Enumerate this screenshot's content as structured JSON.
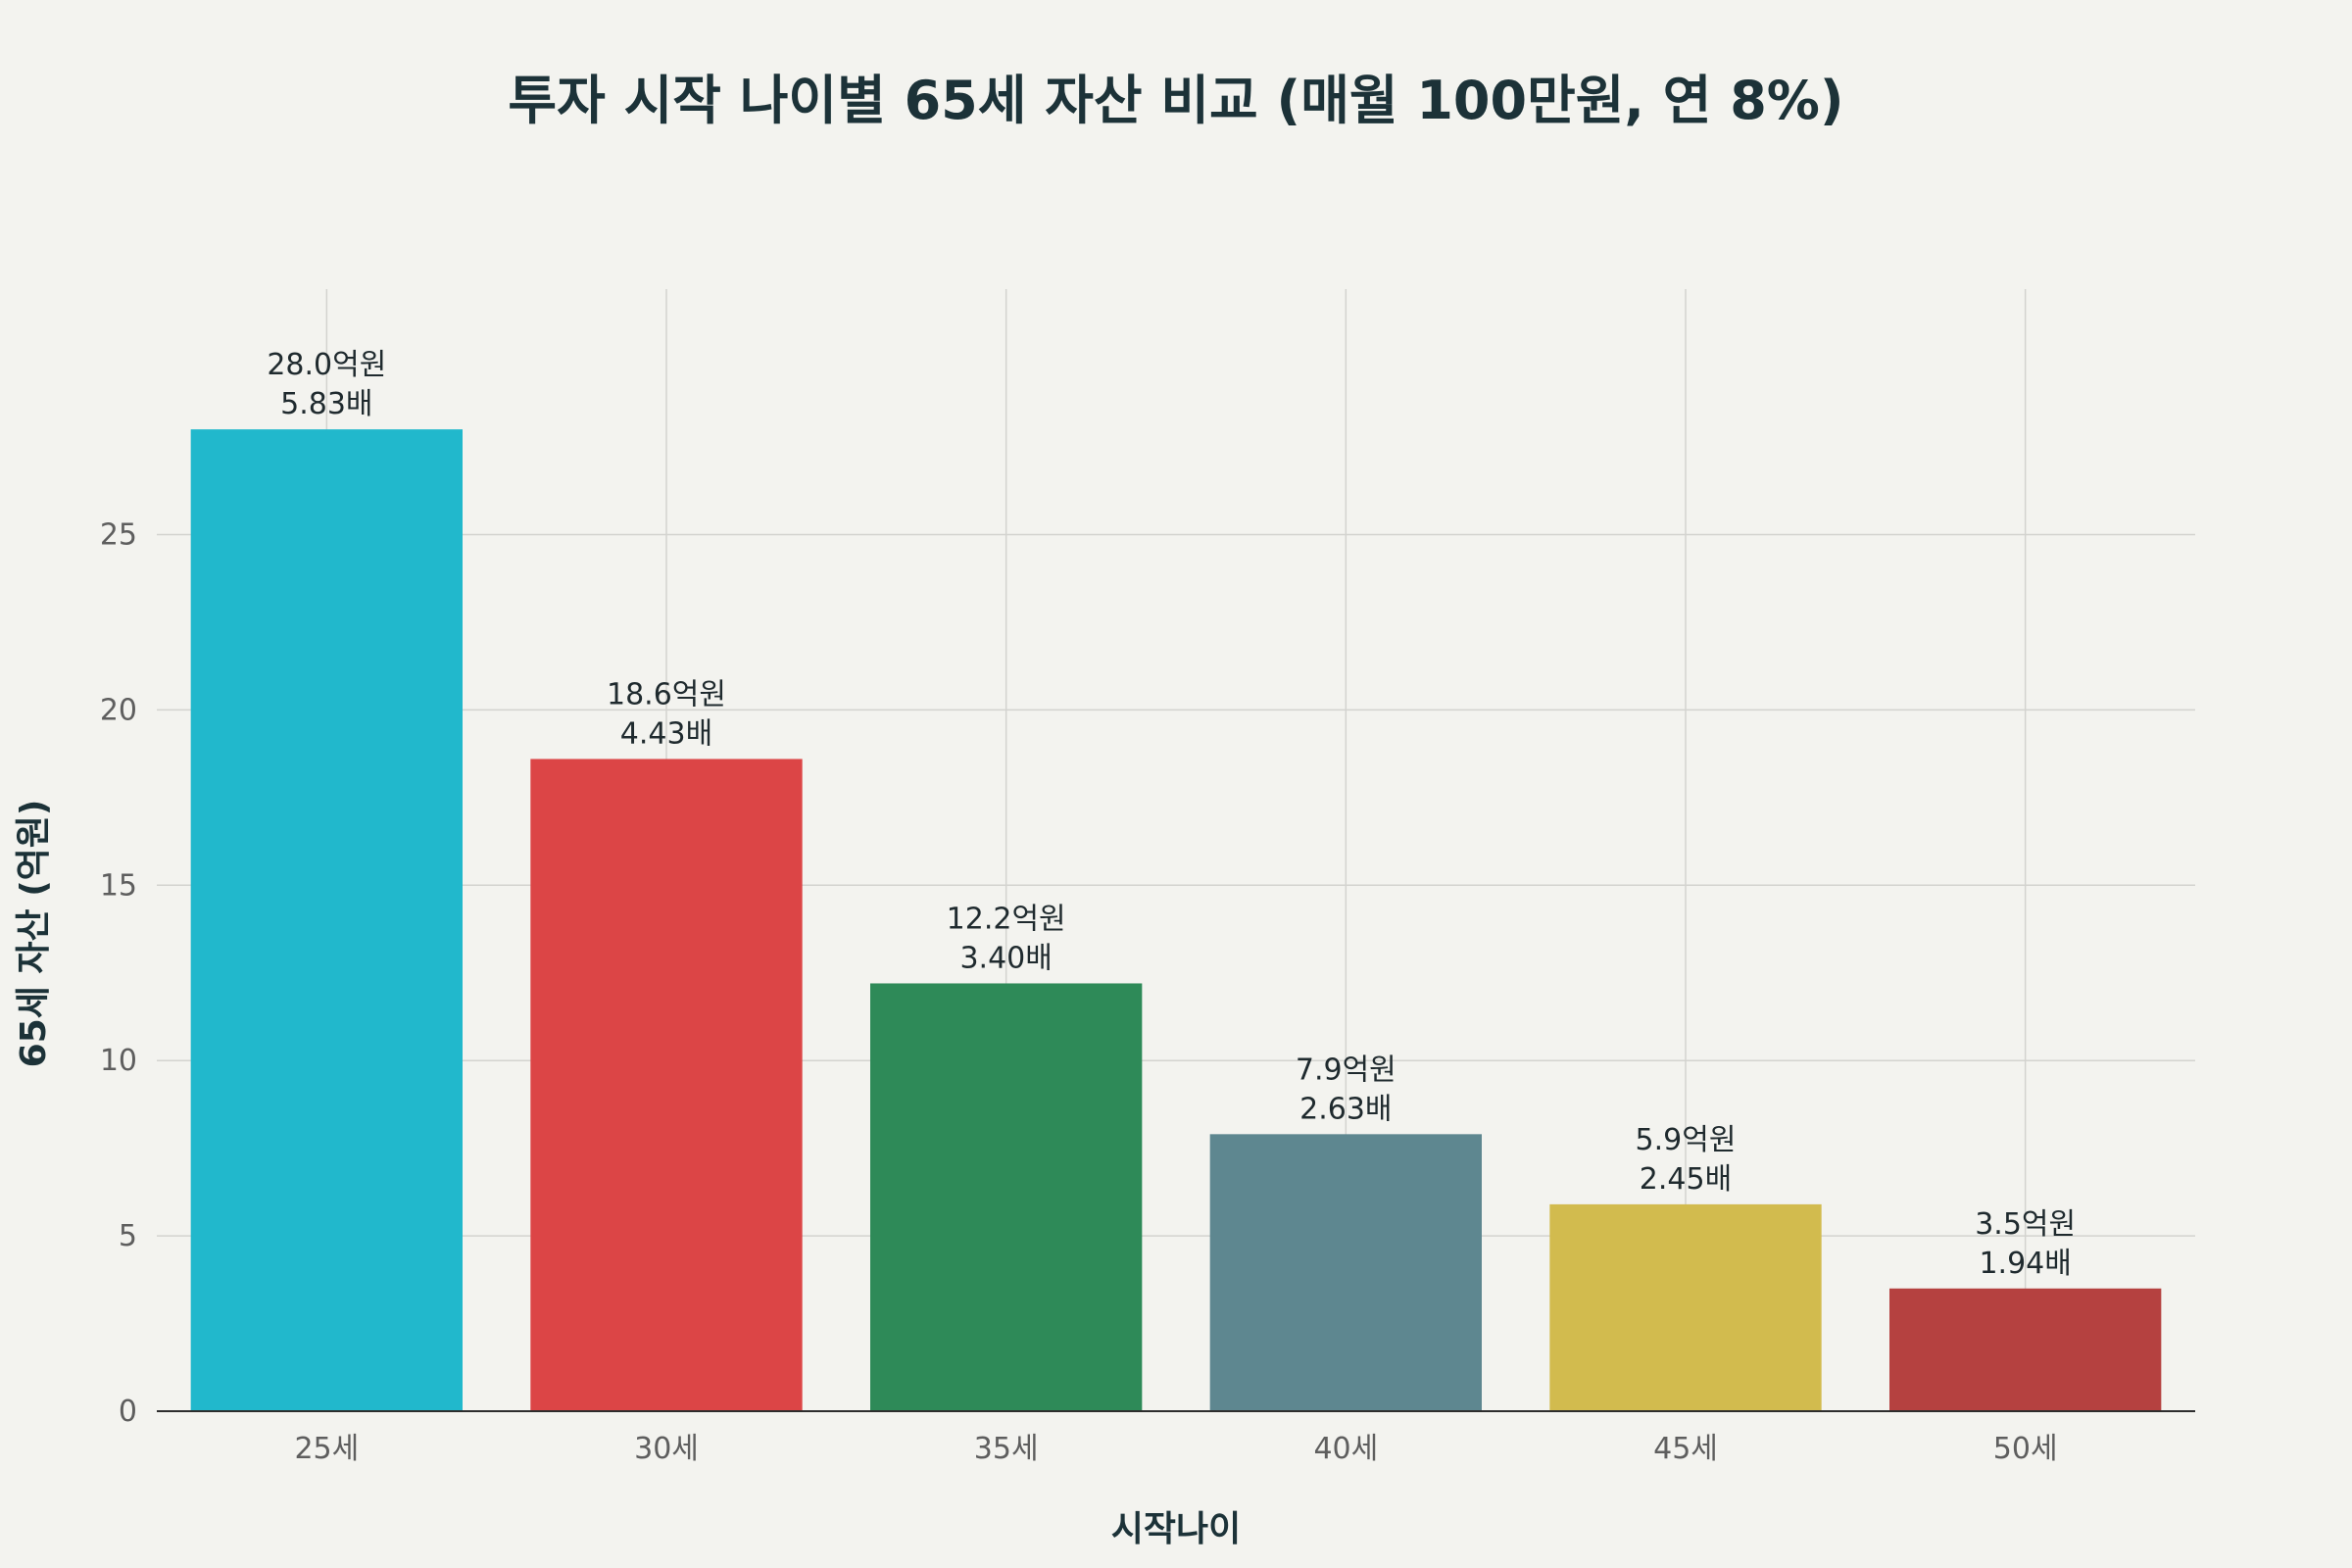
{
  "chart_data": {
    "type": "bar",
    "title": "투자 시작 나이별 65세 자산 비교 (매월 100만원, 연 8%)",
    "xlabel": "시작나이",
    "ylabel": "65세 자산 (억원)",
    "categories": [
      "25세",
      "30세",
      "35세",
      "40세",
      "45세",
      "50세"
    ],
    "values": [
      28.0,
      18.6,
      12.2,
      7.9,
      5.9,
      3.5
    ],
    "value_labels": [
      "28.0억원",
      "18.6억원",
      "12.2억원",
      "7.9억원",
      "5.9억원",
      "3.5억원"
    ],
    "multiplier_labels": [
      "5.83배",
      "4.43배",
      "3.40배",
      "2.63배",
      "2.45배",
      "1.94배"
    ],
    "colors": [
      "#21b8cc",
      "#dc4546",
      "#2e8a58",
      "#5e8790",
      "#d2bb4e",
      "#b54140"
    ],
    "ylim": [
      0,
      32
    ],
    "yticks": [
      0,
      5,
      10,
      15,
      20,
      25
    ],
    "grid": true,
    "legend": "none"
  }
}
